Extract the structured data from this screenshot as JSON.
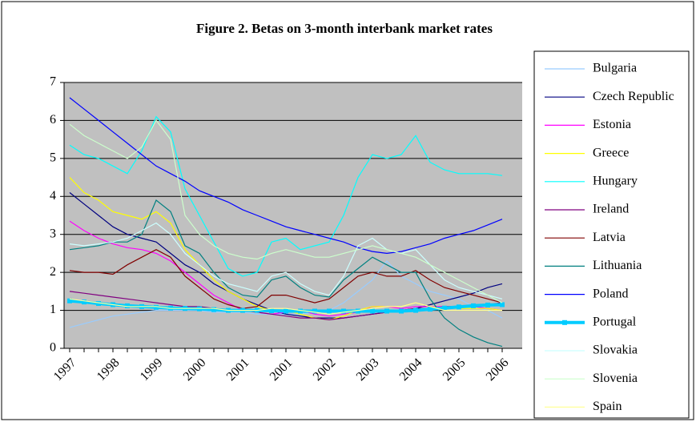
{
  "chart_data": {
    "type": "line",
    "title": "Figure 2. Betas on 3-month interbank market rates",
    "categories": [
      "1997",
      null,
      null,
      "1998",
      null,
      null,
      "1999",
      null,
      null,
      "2000",
      null,
      null,
      "2001",
      null,
      null,
      "2001",
      null,
      null,
      "2002",
      null,
      null,
      "2003",
      null,
      null,
      "2004",
      null,
      null,
      "2005",
      null,
      null,
      "2006"
    ],
    "ylim": [
      0,
      7
    ],
    "yticks": [
      0,
      1,
      2,
      3,
      4,
      5,
      6,
      7
    ],
    "grid": true,
    "series": [
      {
        "name": "Bulgaria",
        "color": "#99ccff",
        "values": [
          0.55,
          0.65,
          0.75,
          0.85,
          0.9,
          0.95,
          1.0,
          1.0,
          1.0,
          1.0,
          0.95,
          0.95,
          0.95,
          0.9,
          0.9,
          0.9,
          0.9,
          0.95,
          1.0,
          1.2,
          1.5,
          1.8,
          2.3,
          1.9,
          1.7,
          1.5,
          1.4,
          1.3,
          1.1,
          1.0,
          0.8
        ]
      },
      {
        "name": "Czech Republic",
        "color": "#000080",
        "values": [
          4.1,
          3.8,
          3.5,
          3.2,
          3.0,
          2.9,
          2.8,
          2.5,
          2.2,
          2.0,
          1.7,
          1.5,
          1.3,
          1.15,
          1.0,
          0.9,
          0.85,
          0.8,
          0.8,
          0.8,
          0.85,
          0.9,
          0.95,
          1.0,
          1.05,
          1.15,
          1.25,
          1.35,
          1.45,
          1.6,
          1.7
        ]
      },
      {
        "name": "Estonia",
        "color": "#ff00ff",
        "values": [
          3.35,
          3.1,
          2.9,
          2.75,
          2.65,
          2.6,
          2.5,
          2.3,
          2.0,
          1.7,
          1.4,
          1.2,
          1.0,
          0.95,
          0.9,
          0.95,
          1.0,
          0.9,
          0.85,
          0.9,
          0.95,
          1.1,
          1.1,
          1.05,
          1.1,
          1.1,
          1.1,
          1.1,
          1.1,
          1.05,
          1.0
        ]
      },
      {
        "name": "Greece",
        "color": "#ffff00",
        "values": [
          4.5,
          4.1,
          3.9,
          3.6,
          3.5,
          3.4,
          3.6,
          3.3,
          2.6,
          2.2,
          1.8,
          1.5,
          1.3,
          1.1,
          1.0,
          1.0,
          0.9,
          0.8,
          0.75,
          0.85,
          1.0,
          1.1,
          1.1,
          1.1,
          1.2,
          1.1,
          1.05,
          1.05,
          1.05,
          1.05,
          1.0
        ]
      },
      {
        "name": "Hungary",
        "color": "#00ffff",
        "values": [
          5.35,
          5.1,
          5.0,
          4.8,
          4.6,
          5.2,
          6.1,
          5.7,
          4.2,
          3.5,
          2.8,
          2.1,
          1.9,
          2.0,
          2.8,
          2.9,
          2.6,
          2.7,
          2.8,
          3.5,
          4.5,
          5.1,
          5.0,
          5.1,
          5.6,
          4.9,
          4.7,
          4.6,
          4.6,
          4.6,
          4.55
        ]
      },
      {
        "name": "Ireland",
        "color": "#800080",
        "values": [
          1.5,
          1.45,
          1.4,
          1.35,
          1.3,
          1.25,
          1.2,
          1.15,
          1.1,
          1.1,
          1.05,
          1.0,
          1.0,
          0.95,
          0.9,
          0.85,
          0.8,
          0.8,
          0.75,
          0.8,
          0.85,
          0.9,
          0.95,
          1.0,
          1.05,
          1.05,
          1.1,
          1.1,
          1.15,
          1.15,
          1.2
        ]
      },
      {
        "name": "Latvia",
        "color": "#800000",
        "values": [
          2.05,
          2.0,
          2.0,
          1.95,
          2.2,
          2.4,
          2.6,
          2.4,
          1.9,
          1.6,
          1.3,
          1.15,
          1.05,
          1.1,
          1.4,
          1.4,
          1.3,
          1.2,
          1.3,
          1.6,
          1.9,
          2.0,
          1.9,
          1.9,
          2.05,
          1.8,
          1.6,
          1.5,
          1.4,
          1.3,
          1.2
        ]
      },
      {
        "name": "Lithuania",
        "color": "#008080",
        "values": [
          2.6,
          2.65,
          2.7,
          2.8,
          2.8,
          3.0,
          3.9,
          3.6,
          2.7,
          2.5,
          2.0,
          1.6,
          1.4,
          1.35,
          1.8,
          1.9,
          1.6,
          1.4,
          1.35,
          1.8,
          2.1,
          2.4,
          2.2,
          2.0,
          2.0,
          1.3,
          0.8,
          0.5,
          0.3,
          0.15,
          0.05
        ]
      },
      {
        "name": "Poland",
        "color": "#0000ff",
        "values": [
          6.6,
          6.3,
          6.0,
          5.7,
          5.4,
          5.1,
          4.8,
          4.6,
          4.4,
          4.15,
          4.0,
          3.85,
          3.65,
          3.5,
          3.35,
          3.2,
          3.1,
          3.0,
          2.9,
          2.8,
          2.65,
          2.55,
          2.5,
          2.55,
          2.65,
          2.75,
          2.9,
          3.0,
          3.1,
          3.25,
          3.4
        ]
      },
      {
        "name": "Portugal",
        "color": "#00ccff",
        "marker": "square",
        "width": 4,
        "values": [
          1.25,
          1.22,
          1.18,
          1.15,
          1.12,
          1.1,
          1.08,
          1.06,
          1.05,
          1.04,
          1.02,
          1.0,
          1.0,
          1.0,
          0.99,
          0.98,
          0.98,
          0.98,
          0.98,
          0.98,
          0.98,
          0.98,
          0.98,
          0.98,
          1.0,
          1.03,
          1.06,
          1.09,
          1.12,
          1.14,
          1.15
        ]
      },
      {
        "name": "Slovakia",
        "color": "#ccffff",
        "values": [
          2.75,
          2.7,
          2.75,
          2.8,
          2.9,
          3.1,
          3.3,
          3.0,
          2.5,
          2.2,
          1.9,
          1.7,
          1.6,
          1.5,
          1.9,
          2.0,
          1.7,
          1.5,
          1.4,
          1.9,
          2.7,
          2.9,
          2.6,
          2.5,
          2.6,
          2.2,
          1.8,
          1.6,
          1.5,
          1.4,
          1.3
        ]
      },
      {
        "name": "Slovenia",
        "color": "#ccffcc",
        "values": [
          5.9,
          5.6,
          5.4,
          5.2,
          5.0,
          5.3,
          6.0,
          5.5,
          3.5,
          3.0,
          2.7,
          2.5,
          2.4,
          2.35,
          2.5,
          2.6,
          2.5,
          2.4,
          2.4,
          2.5,
          2.6,
          2.7,
          2.6,
          2.5,
          2.4,
          2.2,
          2.0,
          1.8,
          1.6,
          1.4,
          1.2
        ]
      },
      {
        "name": "Spain",
        "color": "#ffff99",
        "values": [
          1.3,
          1.25,
          1.2,
          1.15,
          1.1,
          1.1,
          1.1,
          1.05,
          1.05,
          1.05,
          1.05,
          1.0,
          1.0,
          1.0,
          1.05,
          1.05,
          1.0,
          0.95,
          0.9,
          0.95,
          1.0,
          1.05,
          1.1,
          1.1,
          1.2,
          1.1,
          1.0,
          1.0,
          1.0,
          1.0,
          1.0
        ]
      }
    ]
  }
}
